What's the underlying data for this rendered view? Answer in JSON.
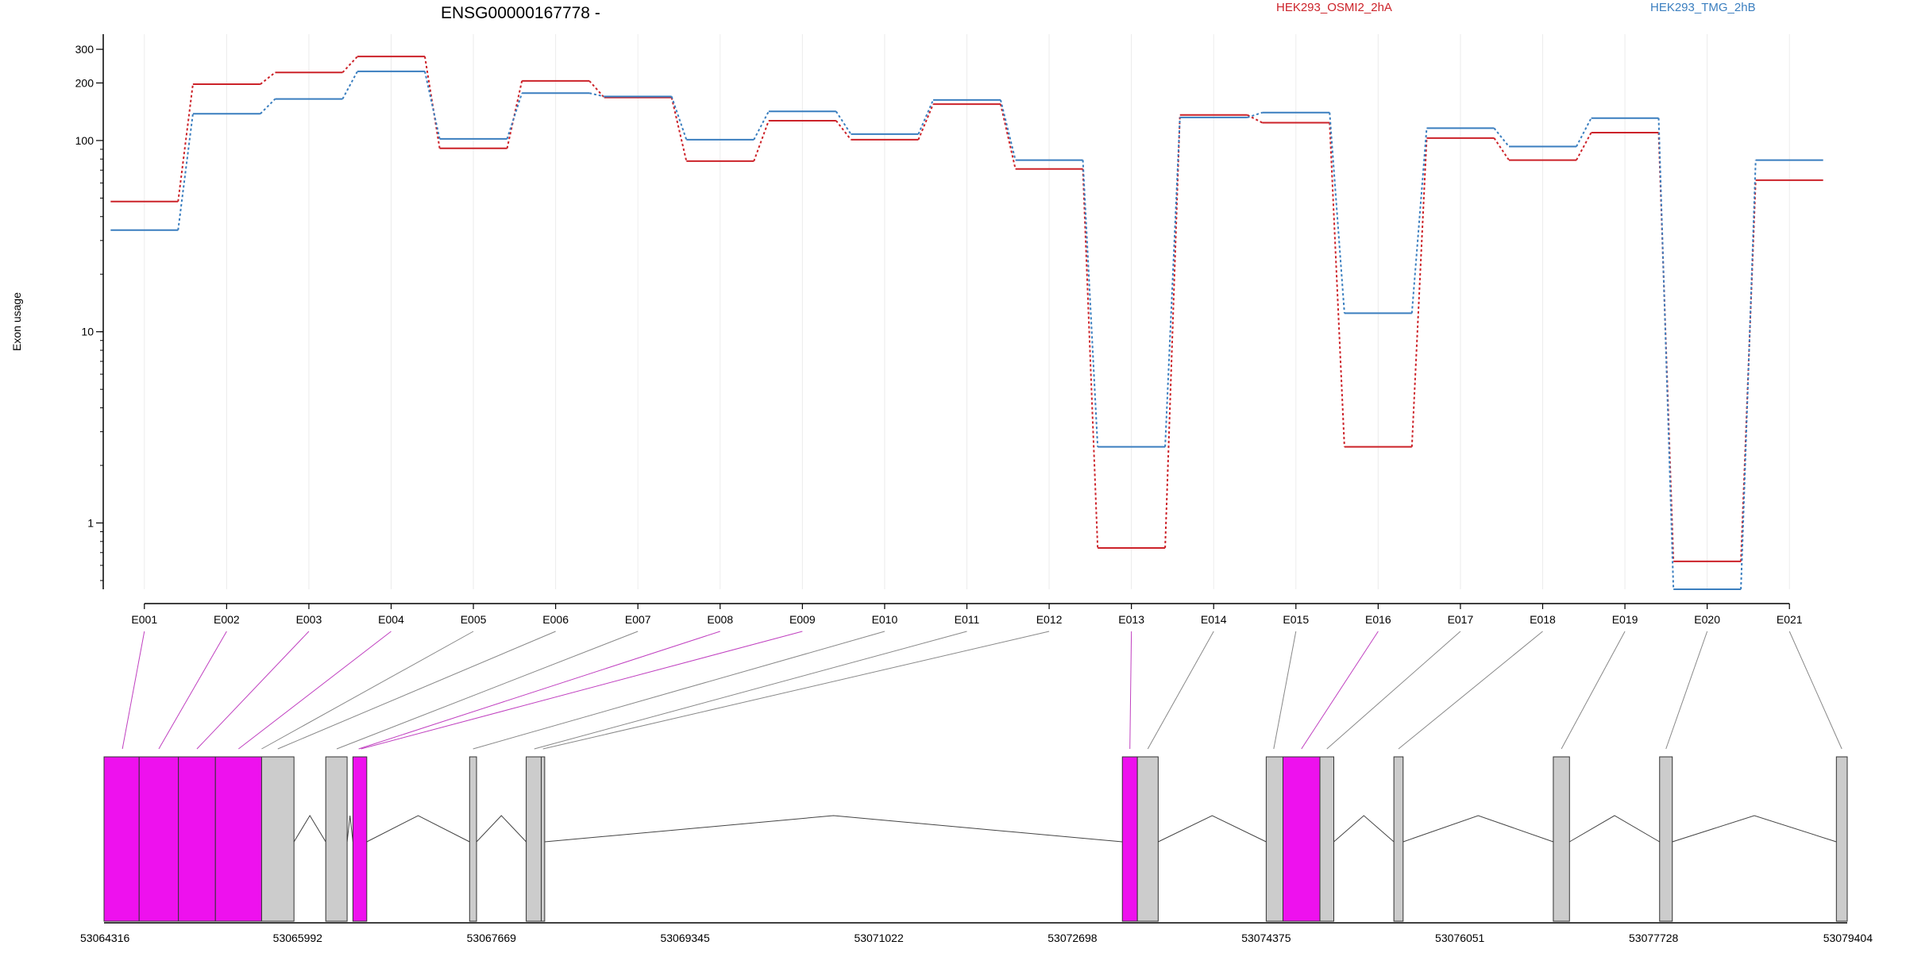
{
  "chart_data": {
    "type": "line",
    "title": "ENSG00000167778 -",
    "ylabel": "Exon usage",
    "yscale": "log",
    "ylim": [
      0.45,
      360
    ],
    "yticks": [
      1,
      10,
      100,
      200,
      300
    ],
    "ytick_labels": [
      "1",
      "10",
      "100",
      "200",
      "300"
    ],
    "grid": true,
    "legend_placement": "top",
    "categories": [
      "E001",
      "E002",
      "E003",
      "E004",
      "E005",
      "E006",
      "E007",
      "E008",
      "E009",
      "E010",
      "E011",
      "E012",
      "E013",
      "E014",
      "E015",
      "E016",
      "E017",
      "E018",
      "E019",
      "E020",
      "E021"
    ],
    "series": [
      {
        "name": "HEK293_OSMI2_2hA",
        "color": "#cc2229",
        "values": [
          48,
          197,
          227,
          275,
          91,
          205,
          168,
          78,
          127,
          101,
          155,
          71,
          0.74,
          136,
          124,
          2.5,
          103,
          79,
          110,
          0.63,
          62
        ]
      },
      {
        "name": "HEK293_TMG_2hB",
        "color": "#3a7ebf",
        "values": [
          34,
          138,
          165,
          230,
          102,
          177,
          170,
          101,
          142,
          108,
          163,
          79,
          2.5,
          132,
          140,
          12.5,
          116,
          93,
          131,
          0.45,
          79
        ]
      }
    ],
    "significant_color": "#ee11ee",
    "neutral_exon_color": "#cccccc",
    "gene_model": {
      "coordinate_labels": [
        "53064316",
        "53065992",
        "53067669",
        "53069345",
        "53071022",
        "53072698",
        "53074375",
        "53076051",
        "53077728",
        "53079404"
      ],
      "coordinate_ticks": [
        53064316,
        53065992,
        53067669,
        53069345,
        53071022,
        53072698,
        53074375,
        53076051,
        53077728,
        53079404
      ],
      "range": [
        53064316,
        53079404
      ],
      "exons": [
        {
          "start": 53064316,
          "end": 53064620,
          "significant": true
        },
        {
          "start": 53064620,
          "end": 53064960,
          "significant": true
        },
        {
          "start": 53064960,
          "end": 53065280,
          "significant": true
        },
        {
          "start": 53065280,
          "end": 53065680,
          "significant": true
        },
        {
          "start": 53065680,
          "end": 53065960,
          "significant": false
        },
        {
          "start": 53066235,
          "end": 53066420,
          "significant": false
        },
        {
          "start": 53066470,
          "end": 53066590,
          "significant": true
        },
        {
          "start": 53067480,
          "end": 53067540,
          "significant": false
        },
        {
          "start": 53067970,
          "end": 53068100,
          "significant": false
        },
        {
          "start": 53068100,
          "end": 53068130,
          "significant": false
        },
        {
          "start": 53073130,
          "end": 53073260,
          "significant": true
        },
        {
          "start": 53073260,
          "end": 53073440,
          "significant": false
        },
        {
          "start": 53074375,
          "end": 53074520,
          "significant": false
        },
        {
          "start": 53074520,
          "end": 53074840,
          "significant": true
        },
        {
          "start": 53074840,
          "end": 53074960,
          "significant": false
        },
        {
          "start": 53075480,
          "end": 53075560,
          "significant": false
        },
        {
          "start": 53076860,
          "end": 53077000,
          "significant": false
        },
        {
          "start": 53077780,
          "end": 53077890,
          "significant": false
        },
        {
          "start": 53079310,
          "end": 53079404,
          "significant": false
        }
      ],
      "introns": [
        [
          53065960,
          53066235
        ],
        [
          53066420,
          53066470
        ],
        [
          53066590,
          53067480
        ],
        [
          53067540,
          53067970
        ],
        [
          53068130,
          53073130
        ],
        [
          53073440,
          53074375
        ],
        [
          53074960,
          53075480
        ],
        [
          53075560,
          53076860
        ],
        [
          53077000,
          53077780
        ],
        [
          53077890,
          53079310
        ]
      ],
      "connectors": [
        {
          "exon": "E001",
          "pos": 53064475,
          "significant": true
        },
        {
          "exon": "E002",
          "pos": 53064790,
          "significant": true
        },
        {
          "exon": "E003",
          "pos": 53065120,
          "significant": true
        },
        {
          "exon": "E004",
          "pos": 53065480,
          "significant": true
        },
        {
          "exon": "E005",
          "pos": 53065680,
          "significant": false
        },
        {
          "exon": "E006",
          "pos": 53065820,
          "significant": false
        },
        {
          "exon": "E007",
          "pos": 53066330,
          "significant": false
        },
        {
          "exon": "E008",
          "pos": 53066520,
          "significant": true
        },
        {
          "exon": "E009",
          "pos": 53066540,
          "significant": true
        },
        {
          "exon": "E010",
          "pos": 53067510,
          "significant": false
        },
        {
          "exon": "E011",
          "pos": 53068040,
          "significant": false
        },
        {
          "exon": "E012",
          "pos": 53068115,
          "significant": false
        },
        {
          "exon": "E013",
          "pos": 53073195,
          "significant": true
        },
        {
          "exon": "E014",
          "pos": 53073350,
          "significant": false
        },
        {
          "exon": "E015",
          "pos": 53074440,
          "significant": false
        },
        {
          "exon": "E016",
          "pos": 53074680,
          "significant": true
        },
        {
          "exon": "E017",
          "pos": 53074900,
          "significant": false
        },
        {
          "exon": "E018",
          "pos": 53075520,
          "significant": false
        },
        {
          "exon": "E019",
          "pos": 53076930,
          "significant": false
        },
        {
          "exon": "E020",
          "pos": 53077835,
          "significant": false
        },
        {
          "exon": "E021",
          "pos": 53079357,
          "significant": false
        }
      ]
    }
  }
}
